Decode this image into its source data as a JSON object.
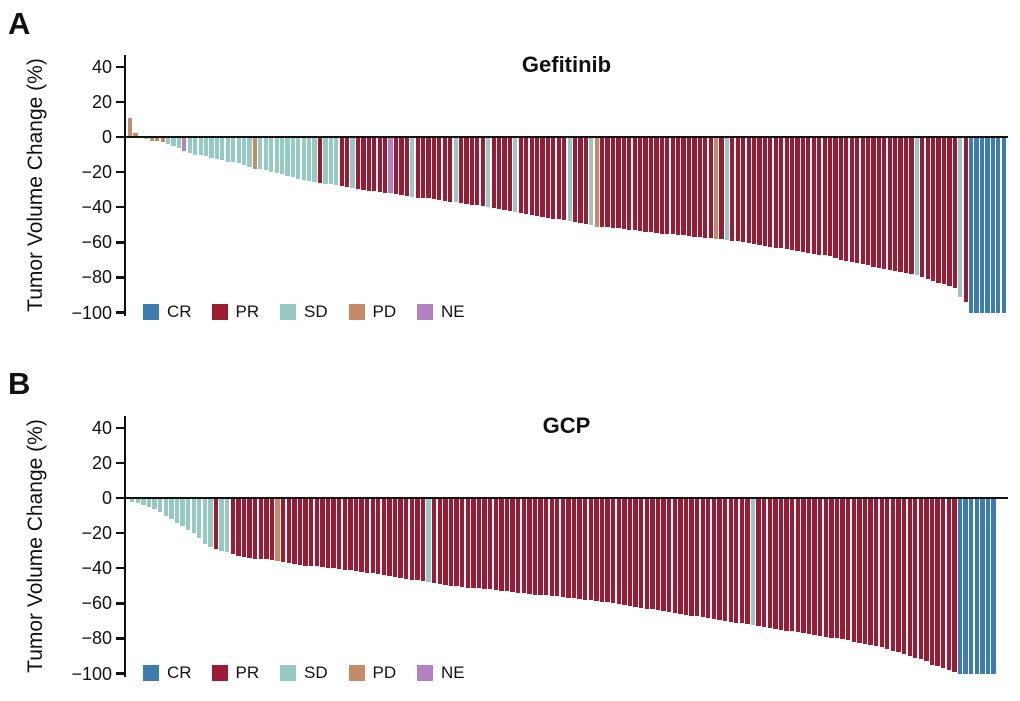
{
  "panels": [
    {
      "letter": "A"
    },
    {
      "letter": "B"
    }
  ],
  "colors": {
    "CR": "#3c7cae",
    "PR": "#9c1b34",
    "SD": "#94cac2",
    "PD": "#c48b66",
    "NE": "#b283bf",
    "axis": "#111111"
  },
  "chart_data": [
    {
      "type": "bar",
      "variant": "waterfall",
      "title": "Gefitinib",
      "xlabel": "",
      "ylabel": "Tumor Volume Change (%)",
      "ylim": [
        -100,
        40
      ],
      "yticks": [
        40,
        20,
        0,
        -20,
        -40,
        -60,
        -80,
        -100
      ],
      "grid": false,
      "legend_position": "bottom-left-inside",
      "legend": [
        {
          "label": "CR",
          "category": "CR"
        },
        {
          "label": "PR",
          "category": "PR"
        },
        {
          "label": "SD",
          "category": "SD"
        },
        {
          "label": "PD",
          "category": "PD"
        },
        {
          "label": "NE",
          "category": "NE"
        }
      ],
      "bars": [
        [
          11,
          "PD"
        ],
        [
          2,
          "PD"
        ],
        [
          -0.5,
          "SD"
        ],
        [
          -1,
          "SD"
        ],
        [
          -2,
          "PD"
        ],
        [
          -2.5,
          "PD"
        ],
        [
          -3,
          "PD"
        ],
        [
          -4,
          "SD"
        ],
        [
          -5,
          "SD"
        ],
        [
          -6,
          "SD"
        ],
        [
          -8,
          "NE"
        ],
        [
          -9,
          "SD"
        ],
        [
          -10,
          "SD"
        ],
        [
          -10.5,
          "SD"
        ],
        [
          -11,
          "SD"
        ],
        [
          -12,
          "SD"
        ],
        [
          -12.5,
          "SD"
        ],
        [
          -13,
          "SD"
        ],
        [
          -14,
          "SD"
        ],
        [
          -14.5,
          "SD"
        ],
        [
          -15,
          "SD"
        ],
        [
          -16,
          "SD"
        ],
        [
          -17,
          "SD"
        ],
        [
          -18,
          "PD"
        ],
        [
          -18.5,
          "SD"
        ],
        [
          -19,
          "SD"
        ],
        [
          -20,
          "SD"
        ],
        [
          -20.5,
          "SD"
        ],
        [
          -21,
          "SD"
        ],
        [
          -22,
          "SD"
        ],
        [
          -23,
          "SD"
        ],
        [
          -24,
          "SD"
        ],
        [
          -24.5,
          "SD"
        ],
        [
          -25,
          "SD"
        ],
        [
          -25.5,
          "SD"
        ],
        [
          -26,
          "PR"
        ],
        [
          -26.5,
          "SD"
        ],
        [
          -27,
          "SD"
        ],
        [
          -27.5,
          "SD"
        ],
        [
          -28,
          "PR"
        ],
        [
          -28.5,
          "PR"
        ],
        [
          -29,
          "SD"
        ],
        [
          -29.5,
          "PR"
        ],
        [
          -30,
          "PR"
        ],
        [
          -30.5,
          "PR"
        ],
        [
          -31,
          "PR"
        ],
        [
          -31.5,
          "PR"
        ],
        [
          -32,
          "PR"
        ],
        [
          -32,
          "NE"
        ],
        [
          -32.5,
          "PR"
        ],
        [
          -33,
          "PR"
        ],
        [
          -33.5,
          "PR"
        ],
        [
          -34,
          "SD"
        ],
        [
          -34.5,
          "PR"
        ],
        [
          -35,
          "PR"
        ],
        [
          -35,
          "PR"
        ],
        [
          -35.5,
          "PR"
        ],
        [
          -36,
          "PR"
        ],
        [
          -36.5,
          "PR"
        ],
        [
          -37,
          "PR"
        ],
        [
          -37,
          "SD"
        ],
        [
          -37.5,
          "PR"
        ],
        [
          -38,
          "PR"
        ],
        [
          -38.5,
          "PR"
        ],
        [
          -39,
          "PR"
        ],
        [
          -39.5,
          "PR"
        ],
        [
          -40,
          "SD"
        ],
        [
          -40.5,
          "PR"
        ],
        [
          -41,
          "PR"
        ],
        [
          -41.5,
          "PR"
        ],
        [
          -42,
          "PR"
        ],
        [
          -43,
          "SD"
        ],
        [
          -43.5,
          "PR"
        ],
        [
          -44,
          "PR"
        ],
        [
          -44.5,
          "PR"
        ],
        [
          -45,
          "PR"
        ],
        [
          -45.5,
          "PR"
        ],
        [
          -46,
          "PR"
        ],
        [
          -46.5,
          "PR"
        ],
        [
          -47,
          "PR"
        ],
        [
          -47.5,
          "PR"
        ],
        [
          -48,
          "SD"
        ],
        [
          -48.5,
          "PR"
        ],
        [
          -49,
          "PR"
        ],
        [
          -49.5,
          "PR"
        ],
        [
          -50,
          "SD"
        ],
        [
          -51,
          "PD"
        ],
        [
          -51,
          "PR"
        ],
        [
          -51.5,
          "PR"
        ],
        [
          -52,
          "PR"
        ],
        [
          -52,
          "PR"
        ],
        [
          -52.5,
          "PR"
        ],
        [
          -53,
          "PR"
        ],
        [
          -53,
          "PR"
        ],
        [
          -53.5,
          "PR"
        ],
        [
          -54,
          "PR"
        ],
        [
          -54,
          "PR"
        ],
        [
          -54.5,
          "PR"
        ],
        [
          -55,
          "PR"
        ],
        [
          -55,
          "PR"
        ],
        [
          -55.5,
          "PR"
        ],
        [
          -56,
          "PR"
        ],
        [
          -56,
          "PR"
        ],
        [
          -56.5,
          "PR"
        ],
        [
          -57,
          "PR"
        ],
        [
          -57,
          "PR"
        ],
        [
          -57.5,
          "PR"
        ],
        [
          -57.5,
          "PR"
        ],
        [
          -58,
          "PD"
        ],
        [
          -58,
          "PR"
        ],
        [
          -58.5,
          "SD"
        ],
        [
          -59,
          "PR"
        ],
        [
          -59.5,
          "PR"
        ],
        [
          -60,
          "PR"
        ],
        [
          -60.5,
          "PR"
        ],
        [
          -61,
          "PR"
        ],
        [
          -61.5,
          "PR"
        ],
        [
          -62,
          "PR"
        ],
        [
          -62.5,
          "PR"
        ],
        [
          -63,
          "PR"
        ],
        [
          -63.5,
          "PR"
        ],
        [
          -64,
          "PR"
        ],
        [
          -64.5,
          "PR"
        ],
        [
          -65,
          "PR"
        ],
        [
          -65.5,
          "PR"
        ],
        [
          -66,
          "PR"
        ],
        [
          -66.5,
          "PR"
        ],
        [
          -67,
          "PR"
        ],
        [
          -67.5,
          "PR"
        ],
        [
          -68,
          "PR"
        ],
        [
          -69,
          "PR"
        ],
        [
          -70,
          "PR"
        ],
        [
          -70.5,
          "PR"
        ],
        [
          -71,
          "PR"
        ],
        [
          -72,
          "PR"
        ],
        [
          -72.5,
          "PR"
        ],
        [
          -73,
          "PR"
        ],
        [
          -74,
          "PR"
        ],
        [
          -74.5,
          "PR"
        ],
        [
          -75,
          "PR"
        ],
        [
          -76,
          "PR"
        ],
        [
          -76.5,
          "PR"
        ],
        [
          -77,
          "PR"
        ],
        [
          -77.5,
          "PR"
        ],
        [
          -78,
          "PR"
        ],
        [
          -78.5,
          "SD"
        ],
        [
          -80,
          "PR"
        ],
        [
          -81,
          "PR"
        ],
        [
          -82,
          "PR"
        ],
        [
          -83,
          "PR"
        ],
        [
          -84,
          "PR"
        ],
        [
          -85,
          "PR"
        ],
        [
          -86,
          "PR"
        ],
        [
          -91,
          "SD"
        ],
        [
          -94,
          "PR"
        ],
        [
          -100,
          "CR"
        ],
        [
          -100,
          "CR"
        ],
        [
          -100,
          "CR"
        ],
        [
          -100,
          "CR"
        ],
        [
          -100,
          "CR"
        ],
        [
          -100,
          "CR"
        ],
        [
          -100,
          "CR"
        ]
      ]
    },
    {
      "type": "bar",
      "variant": "waterfall",
      "title": "GCP",
      "xlabel": "",
      "ylabel": "Tumor Volume Change (%)",
      "ylim": [
        -100,
        40
      ],
      "yticks": [
        40,
        20,
        0,
        -20,
        -40,
        -60,
        -80,
        -100
      ],
      "grid": false,
      "legend_position": "bottom-left-inside",
      "legend": [
        {
          "label": "CR",
          "category": "CR"
        },
        {
          "label": "PR",
          "category": "PR"
        },
        {
          "label": "SD",
          "category": "SD"
        },
        {
          "label": "PD",
          "category": "PD"
        },
        {
          "label": "NE",
          "category": "NE"
        }
      ],
      "bars": [
        [
          -2,
          "SD"
        ],
        [
          -3,
          "SD"
        ],
        [
          -4,
          "SD"
        ],
        [
          -5,
          "SD"
        ],
        [
          -6,
          "SD"
        ],
        [
          -8,
          "SD"
        ],
        [
          -10,
          "SD"
        ],
        [
          -12,
          "SD"
        ],
        [
          -14,
          "SD"
        ],
        [
          -16,
          "SD"
        ],
        [
          -18,
          "SD"
        ],
        [
          -20,
          "SD"
        ],
        [
          -23,
          "SD"
        ],
        [
          -26,
          "SD"
        ],
        [
          -28,
          "SD"
        ],
        [
          -29,
          "PR"
        ],
        [
          -30,
          "SD"
        ],
        [
          -31,
          "SD"
        ],
        [
          -32,
          "PR"
        ],
        [
          -33,
          "PR"
        ],
        [
          -33.5,
          "PR"
        ],
        [
          -34,
          "PR"
        ],
        [
          -34.5,
          "PR"
        ],
        [
          -35,
          "PR"
        ],
        [
          -35,
          "PR"
        ],
        [
          -35.5,
          "PR"
        ],
        [
          -36,
          "PD"
        ],
        [
          -36.5,
          "PR"
        ],
        [
          -37,
          "PR"
        ],
        [
          -37.5,
          "PR"
        ],
        [
          -38,
          "PR"
        ],
        [
          -38.5,
          "PR"
        ],
        [
          -39,
          "PR"
        ],
        [
          -39,
          "PR"
        ],
        [
          -39.5,
          "PR"
        ],
        [
          -40,
          "PR"
        ],
        [
          -40,
          "PR"
        ],
        [
          -40.5,
          "PR"
        ],
        [
          -41,
          "PR"
        ],
        [
          -41,
          "PR"
        ],
        [
          -41.5,
          "PR"
        ],
        [
          -42,
          "PR"
        ],
        [
          -42.5,
          "PR"
        ],
        [
          -43,
          "PR"
        ],
        [
          -43.5,
          "PR"
        ],
        [
          -44,
          "PR"
        ],
        [
          -44.5,
          "PR"
        ],
        [
          -45,
          "PR"
        ],
        [
          -45.5,
          "PR"
        ],
        [
          -46,
          "PR"
        ],
        [
          -46.5,
          "PR"
        ],
        [
          -47,
          "PR"
        ],
        [
          -47.5,
          "PR"
        ],
        [
          -48,
          "SD"
        ],
        [
          -48.5,
          "PR"
        ],
        [
          -49,
          "PR"
        ],
        [
          -49.5,
          "PR"
        ],
        [
          -50,
          "PR"
        ],
        [
          -50,
          "PR"
        ],
        [
          -50.5,
          "PR"
        ],
        [
          -51,
          "PR"
        ],
        [
          -51,
          "PR"
        ],
        [
          -51.5,
          "PR"
        ],
        [
          -52,
          "PR"
        ],
        [
          -52,
          "PR"
        ],
        [
          -52.5,
          "PR"
        ],
        [
          -53,
          "PR"
        ],
        [
          -53,
          "PR"
        ],
        [
          -53.5,
          "PR"
        ],
        [
          -54,
          "PR"
        ],
        [
          -54,
          "PR"
        ],
        [
          -54.5,
          "PR"
        ],
        [
          -55,
          "PR"
        ],
        [
          -55,
          "PR"
        ],
        [
          -55.5,
          "PR"
        ],
        [
          -56,
          "PR"
        ],
        [
          -56,
          "PR"
        ],
        [
          -56.5,
          "PR"
        ],
        [
          -57,
          "PR"
        ],
        [
          -57,
          "PR"
        ],
        [
          -57.5,
          "PR"
        ],
        [
          -58,
          "PR"
        ],
        [
          -58,
          "PR"
        ],
        [
          -58.5,
          "PR"
        ],
        [
          -59,
          "PR"
        ],
        [
          -59.5,
          "PR"
        ],
        [
          -60,
          "PR"
        ],
        [
          -60.5,
          "PR"
        ],
        [
          -61,
          "PR"
        ],
        [
          -61.5,
          "PR"
        ],
        [
          -62,
          "PR"
        ],
        [
          -62.5,
          "PR"
        ],
        [
          -63,
          "PR"
        ],
        [
          -63.5,
          "PR"
        ],
        [
          -64,
          "PR"
        ],
        [
          -64.5,
          "PR"
        ],
        [
          -65,
          "PR"
        ],
        [
          -65.5,
          "PR"
        ],
        [
          -66,
          "PR"
        ],
        [
          -66.5,
          "PR"
        ],
        [
          -67,
          "PR"
        ],
        [
          -67.5,
          "PR"
        ],
        [
          -68,
          "PR"
        ],
        [
          -68.5,
          "PR"
        ],
        [
          -69,
          "PR"
        ],
        [
          -69.5,
          "PR"
        ],
        [
          -70,
          "PR"
        ],
        [
          -70.5,
          "PR"
        ],
        [
          -71,
          "PR"
        ],
        [
          -71.5,
          "PR"
        ],
        [
          -72,
          "PR"
        ],
        [
          -72.5,
          "SD"
        ],
        [
          -73,
          "PR"
        ],
        [
          -73.5,
          "PR"
        ],
        [
          -74,
          "PR"
        ],
        [
          -74.5,
          "PR"
        ],
        [
          -75,
          "PR"
        ],
        [
          -75.5,
          "PR"
        ],
        [
          -76,
          "PR"
        ],
        [
          -76.5,
          "PR"
        ],
        [
          -77,
          "PR"
        ],
        [
          -77.5,
          "PR"
        ],
        [
          -78,
          "PR"
        ],
        [
          -78.5,
          "PR"
        ],
        [
          -79,
          "PR"
        ],
        [
          -79.5,
          "PR"
        ],
        [
          -80,
          "PR"
        ],
        [
          -80.5,
          "PR"
        ],
        [
          -81,
          "PR"
        ],
        [
          -82,
          "PR"
        ],
        [
          -82.5,
          "PR"
        ],
        [
          -83,
          "PR"
        ],
        [
          -84,
          "PR"
        ],
        [
          -84.5,
          "PR"
        ],
        [
          -85,
          "PR"
        ],
        [
          -86,
          "PR"
        ],
        [
          -87,
          "PR"
        ],
        [
          -88,
          "PR"
        ],
        [
          -89,
          "PR"
        ],
        [
          -90,
          "PR"
        ],
        [
          -91,
          "PR"
        ],
        [
          -92,
          "PR"
        ],
        [
          -93,
          "PR"
        ],
        [
          -95,
          "PR"
        ],
        [
          -96,
          "PR"
        ],
        [
          -97,
          "PR"
        ],
        [
          -98,
          "PR"
        ],
        [
          -99,
          "PR"
        ],
        [
          -100,
          "CR"
        ],
        [
          -100,
          "CR"
        ],
        [
          -100,
          "CR"
        ],
        [
          -100,
          "CR"
        ],
        [
          -100,
          "CR"
        ],
        [
          -100,
          "CR"
        ],
        [
          -100,
          "CR"
        ]
      ]
    }
  ]
}
